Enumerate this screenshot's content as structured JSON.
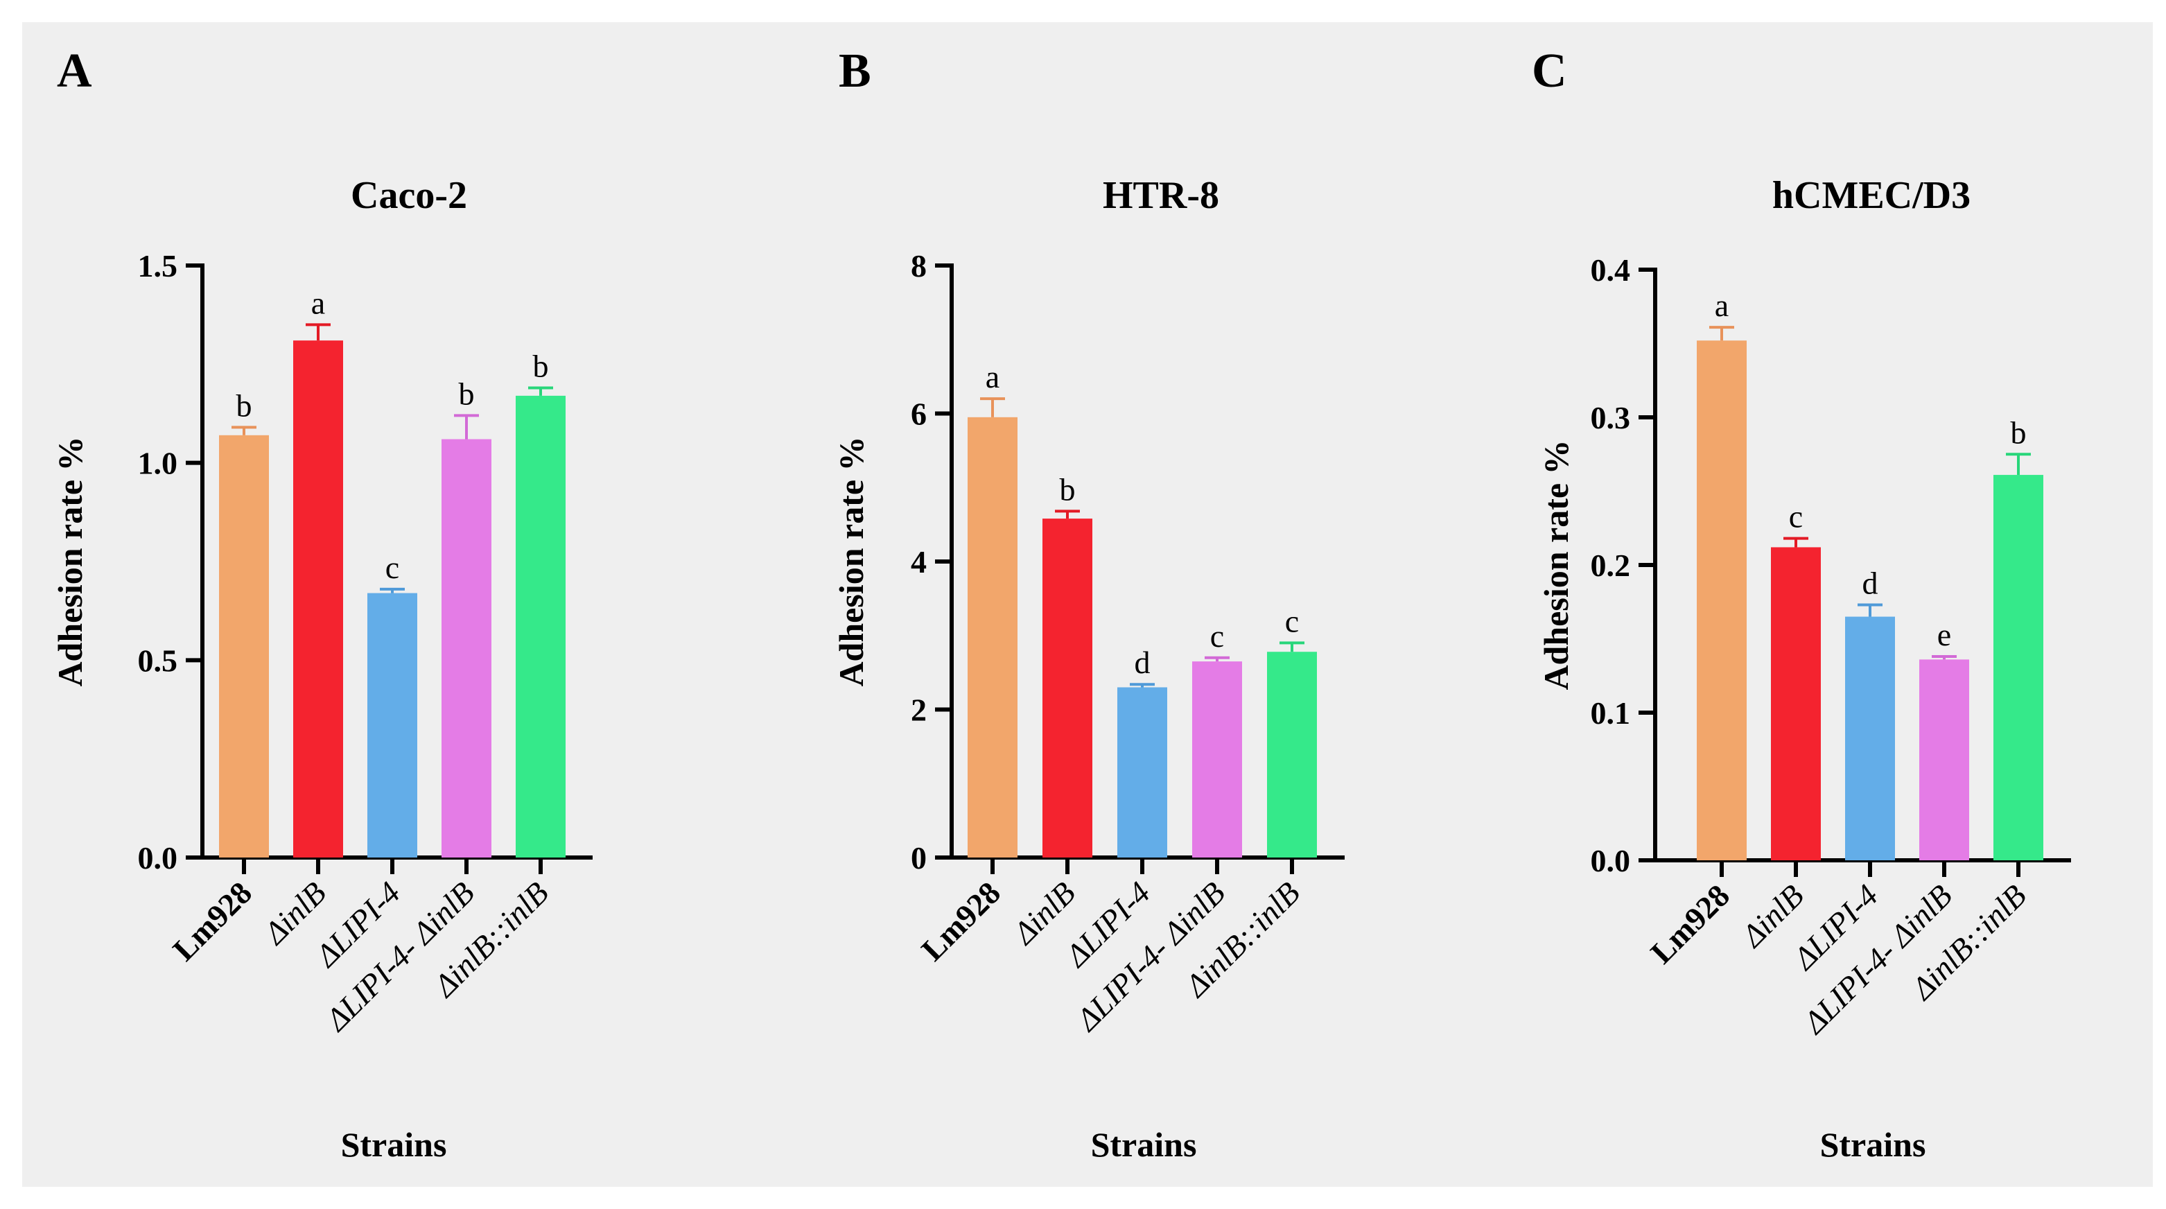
{
  "colors": {
    "background": "#efefef",
    "axis": "#000000",
    "bars": [
      "#f2a66b",
      "#f4232f",
      "#63ade8",
      "#e47ce6",
      "#35e98a"
    ],
    "error_bars": [
      "#e8925a",
      "#e31a25",
      "#4f9ad8",
      "#d26ad6",
      "#28d67a"
    ]
  },
  "chart_data": [
    {
      "panel": "A",
      "type": "bar",
      "title": "Caco-2",
      "xlabel": "Strains",
      "ylabel": "Adhesion rate %",
      "ylim": [
        0,
        1.5
      ],
      "yticks": [
        "0.0",
        "0.5",
        "1.0",
        "1.5"
      ],
      "yticks_values": [
        0,
        0.5,
        1.0,
        1.5
      ],
      "categories": [
        "Lm928",
        "ΔinlB",
        "ΔLIPI-4",
        "ΔLIPI-4- ΔinlB",
        "ΔinlB::inlB"
      ],
      "values": [
        1.07,
        1.31,
        0.67,
        1.06,
        1.17
      ],
      "errors": [
        0.02,
        0.04,
        0.01,
        0.06,
        0.02
      ],
      "letters": [
        "b",
        "a",
        "c",
        "b",
        "b"
      ]
    },
    {
      "panel": "B",
      "type": "bar",
      "title": "HTR-8",
      "xlabel": "Strains",
      "ylabel": "Adhesion rate %",
      "ylim": [
        0,
        8
      ],
      "yticks": [
        "0",
        "2",
        "4",
        "6",
        "8"
      ],
      "yticks_values": [
        0,
        2,
        4,
        6,
        8
      ],
      "categories": [
        "Lm928",
        "ΔinlB",
        "ΔLIPI-4",
        "ΔLIPI-4- ΔinlB",
        "ΔinlB::inlB"
      ],
      "values": [
        5.95,
        4.58,
        2.3,
        2.65,
        2.78
      ],
      "errors": [
        0.25,
        0.1,
        0.04,
        0.05,
        0.12
      ],
      "letters": [
        "a",
        "b",
        "d",
        "c",
        "c"
      ]
    },
    {
      "panel": "C",
      "type": "bar",
      "title": "hCMEC/D3",
      "xlabel": "Strains",
      "ylabel": "Adhesion rate %",
      "ylim": [
        0,
        0.4
      ],
      "yticks": [
        "0.0",
        "0.1",
        "0.2",
        "0.3",
        "0.4"
      ],
      "yticks_values": [
        0,
        0.1,
        0.2,
        0.3,
        0.4
      ],
      "categories": [
        "Lm928",
        "ΔinlB",
        "ΔLIPI-4",
        "ΔLIPI-4- ΔinlB",
        "ΔinlB::inlB"
      ],
      "values": [
        0.352,
        0.212,
        0.165,
        0.136,
        0.261
      ],
      "errors": [
        0.009,
        0.006,
        0.008,
        0.002,
        0.014
      ],
      "letters": [
        "a",
        "c",
        "d",
        "e",
        "b"
      ]
    }
  ]
}
